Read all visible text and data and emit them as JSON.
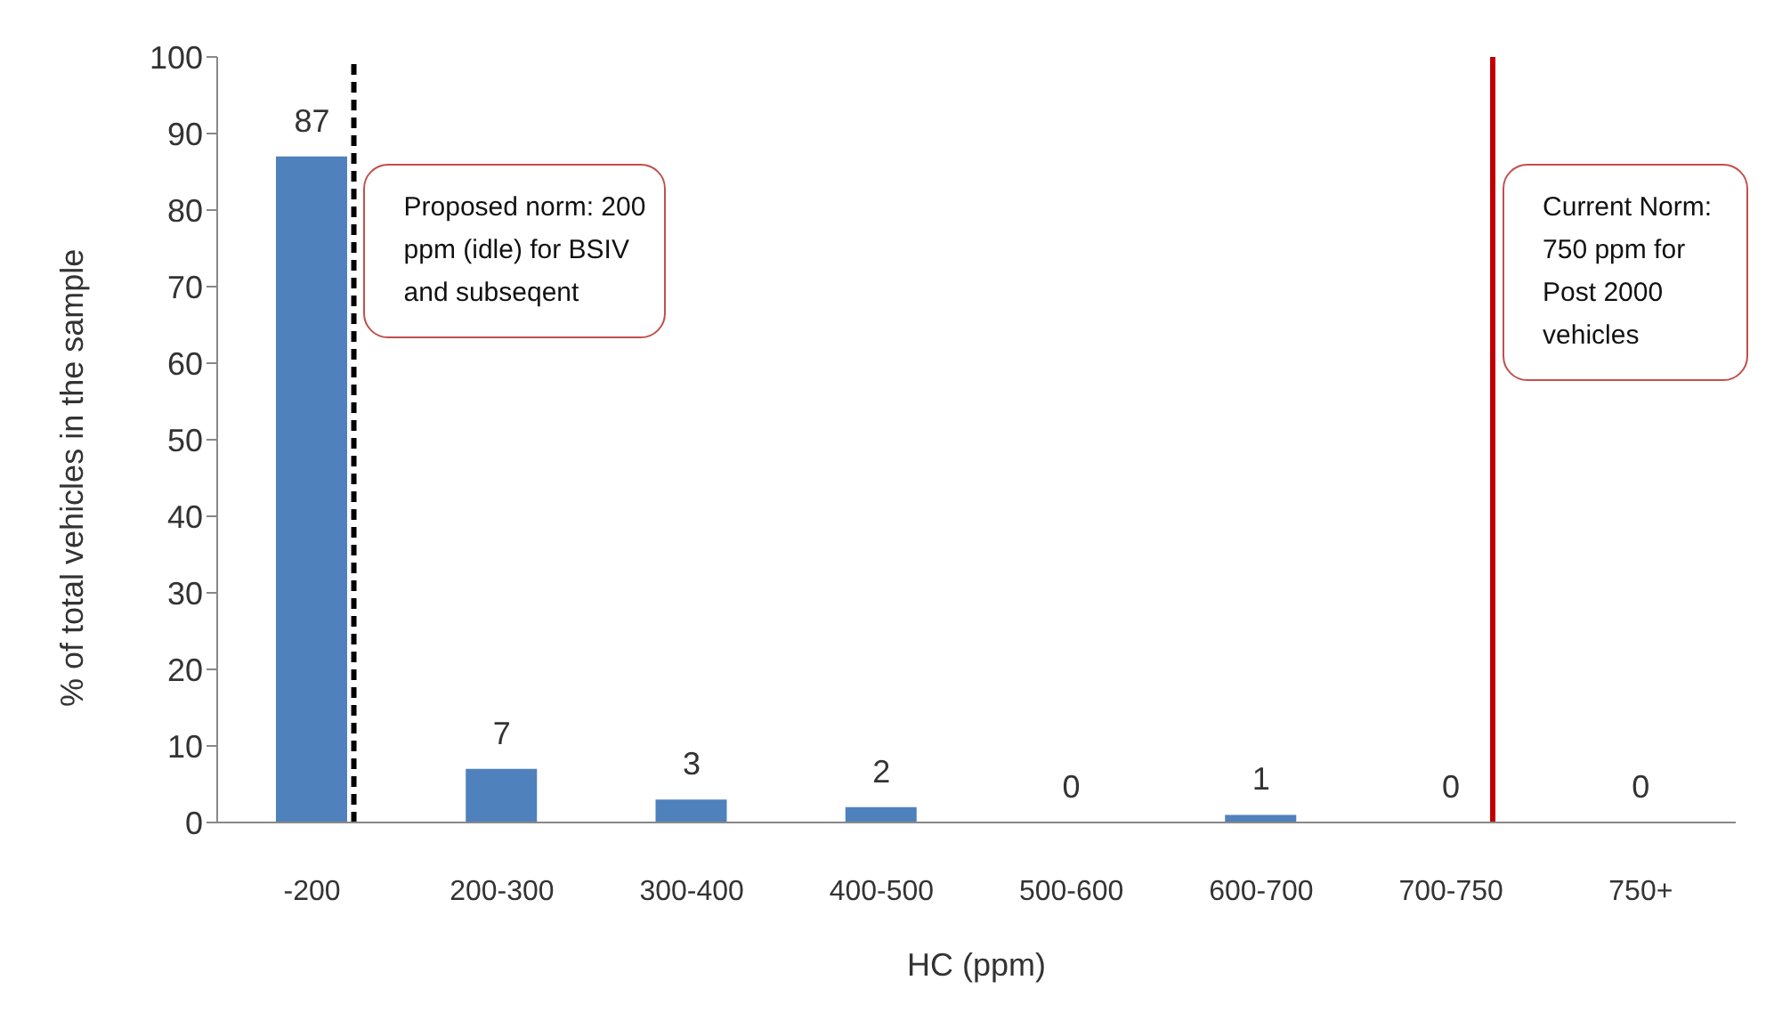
{
  "chart_data": {
    "type": "bar",
    "xlabel": "HC (ppm)",
    "ylabel": "% of total vehicles in the sample",
    "categories": [
      "-200",
      "200-300",
      "300-400",
      "400-500",
      "500-600",
      "600-700",
      "700-750",
      "750+"
    ],
    "values": [
      87,
      7,
      3,
      2,
      0,
      1,
      0,
      0
    ],
    "color": "#4f81bd",
    "data_labels": true,
    "ylim": [
      0,
      100
    ],
    "yticks": [
      0,
      10,
      20,
      30,
      40,
      50,
      60,
      70,
      80,
      90,
      100
    ],
    "grid": false,
    "legend": false,
    "ref_lines": [
      {
        "axis": "x",
        "value": "-200",
        "label": "Proposed norm: 200 ppm (idle)  for BSIV and subseqent",
        "color": "#000000",
        "line_style": "dashed"
      },
      {
        "axis": "x",
        "value": "700-750",
        "label": "Current Norm: 750 ppm for Post 2000 vehicles",
        "color": "#c00000",
        "line_style": "solid"
      }
    ]
  }
}
